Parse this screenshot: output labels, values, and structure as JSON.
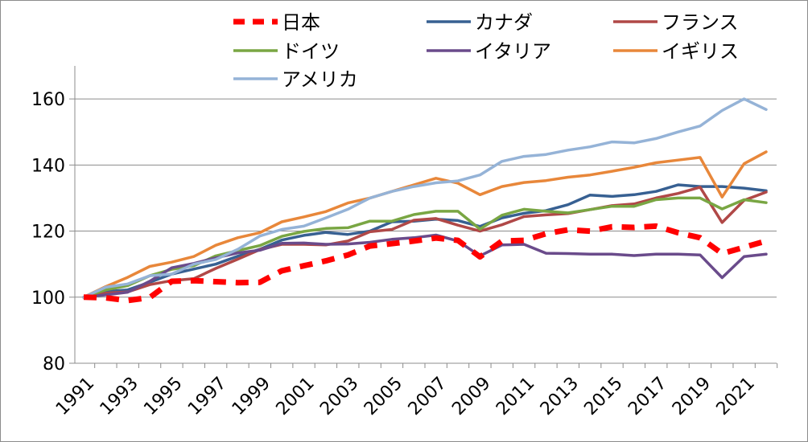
{
  "chart_data": {
    "type": "line",
    "title": "",
    "xlabel": "",
    "ylabel": "",
    "ylim": [
      80,
      170
    ],
    "y_ticks": [
      "80",
      "100",
      "120",
      "140",
      "160"
    ],
    "x_tick_labels": [
      "1991",
      "1993",
      "1995",
      "1997",
      "1999",
      "2001",
      "2003",
      "2005",
      "2007",
      "2009",
      "2011",
      "2013",
      "2015",
      "2017",
      "2019",
      "2021"
    ],
    "x": [
      1991,
      1992,
      1993,
      1994,
      1995,
      1996,
      1997,
      1998,
      1999,
      2000,
      2001,
      2002,
      2003,
      2004,
      2005,
      2006,
      2007,
      2008,
      2009,
      2010,
      2011,
      2012,
      2013,
      2014,
      2015,
      2016,
      2017,
      2018,
      2019,
      2020,
      2021,
      2022
    ],
    "grid": "horizontal",
    "legend_position": "top",
    "series": [
      {
        "name": "日本",
        "color": "#ff0000",
        "dashed": true,
        "values": [
          100,
          99.8,
          99,
          99.9,
          104.8,
          105,
          104.7,
          104.4,
          104.5,
          108,
          109.5,
          111,
          112.8,
          115.5,
          116.2,
          117,
          117.9,
          117.2,
          112.2,
          117,
          117.2,
          119.2,
          120.4,
          120,
          121.3,
          121.1,
          121.5,
          119.5,
          118,
          113.2,
          115.1,
          117
        ]
      },
      {
        "name": "カナダ",
        "color": "#376092",
        "values": [
          100,
          101.7,
          102.2,
          104.5,
          107,
          108.5,
          110,
          112.4,
          114.5,
          117.3,
          118.7,
          119.6,
          119,
          120,
          122.8,
          123,
          123.6,
          123.2,
          121.4,
          124,
          125.4,
          126.2,
          128,
          130.9,
          130.5,
          131,
          132,
          134,
          133.5,
          133.5,
          133,
          132.2
        ]
      },
      {
        "name": "フランス",
        "color": "#b04847",
        "values": [
          100,
          101.2,
          101.6,
          103.8,
          105,
          105.6,
          108.7,
          111.5,
          114.4,
          116,
          116,
          115.8,
          117,
          119.8,
          120.5,
          123.3,
          123.8,
          121.8,
          120,
          121.9,
          124.4,
          124.9,
          125.3,
          126.5,
          127.7,
          128.2,
          130,
          131.4,
          133.3,
          122.6,
          129.3,
          131.8
        ]
      },
      {
        "name": "ドイツ",
        "color": "#79a643",
        "values": [
          100,
          102.2,
          103.5,
          106.5,
          108.4,
          109.5,
          112.5,
          114.1,
          115.6,
          118.4,
          119.9,
          120.8,
          121,
          123,
          123,
          125,
          126,
          126,
          120.6,
          124.8,
          126.6,
          126,
          125.5,
          126.5,
          127.5,
          127.5,
          129.5,
          130,
          130,
          126.7,
          129.5,
          128.6
        ]
      },
      {
        "name": "イタリア",
        "color": "#6a4b8b",
        "values": [
          100,
          100.7,
          101.5,
          104.8,
          108.9,
          110.2,
          111.9,
          113.4,
          114.2,
          116.3,
          116.4,
          116,
          116.1,
          116.6,
          117.5,
          118,
          118.8,
          117,
          112.5,
          115.8,
          116,
          113.3,
          113.2,
          113,
          113,
          112.6,
          113,
          113,
          112.8,
          105.9,
          112.3,
          113
        ]
      },
      {
        "name": "イギリス",
        "color": "#e8873a",
        "values": [
          100,
          103.2,
          106,
          109.3,
          110.6,
          112.3,
          115.7,
          118,
          119.5,
          122.8,
          124.3,
          125.9,
          128.5,
          130,
          132,
          134,
          136,
          134.5,
          131,
          133.5,
          134.7,
          135.3,
          136.3,
          137,
          138.1,
          139.3,
          140.7,
          141.5,
          142.3,
          130.3,
          140.4,
          144
        ]
      },
      {
        "name": "アメリカ",
        "color": "#95b3d7",
        "values": [
          100,
          103,
          104,
          106.5,
          107,
          110,
          111.4,
          114.5,
          118.5,
          120.5,
          121.5,
          124,
          126.6,
          130,
          132,
          133.5,
          134.6,
          135.2,
          137,
          141.1,
          142.6,
          143.2,
          144.5,
          145.5,
          147,
          146.7,
          148,
          150,
          151.8,
          156.5,
          160,
          156.8
        ]
      }
    ]
  }
}
